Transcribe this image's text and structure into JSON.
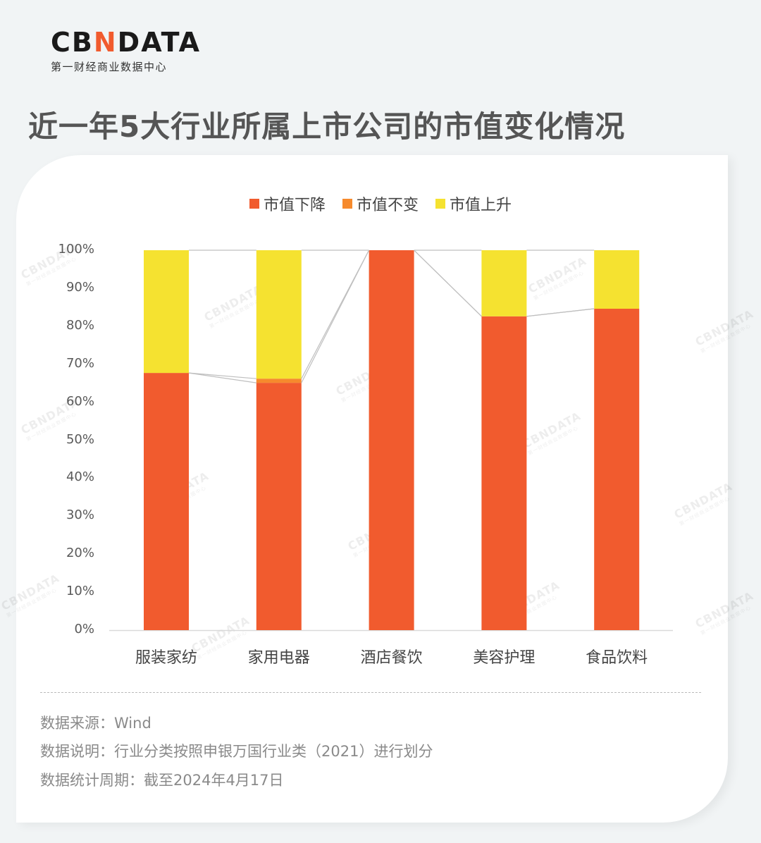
{
  "brand": {
    "logo_prefix": "CB",
    "logo_accent": "N",
    "logo_suffix": "DATA",
    "logo_subtitle": "第一财经商业数据中心"
  },
  "title": "近一年5大行业所属上市公司的市值变化情况",
  "colors": {
    "decrease": "#F15B2E",
    "unchanged": "#F68A2D",
    "increase": "#F5E230",
    "connector": "#BFBFBF",
    "axis": "#D9D9D9"
  },
  "legend": [
    {
      "label": "市值下降",
      "color": "#F15B2E"
    },
    {
      "label": "市值不变",
      "color": "#F68A2D"
    },
    {
      "label": "市值上升",
      "color": "#F5E230"
    }
  ],
  "chart_data": {
    "type": "bar",
    "stacked": true,
    "percent_stacked": true,
    "title": "近一年5大行业所属上市公司的市值变化情况",
    "xlabel": "",
    "ylabel": "",
    "ylim": [
      0,
      100
    ],
    "yticks": [
      "0%",
      "10%",
      "20%",
      "30%",
      "40%",
      "50%",
      "60%",
      "70%",
      "80%",
      "90%",
      "100%"
    ],
    "categories": [
      "服装家纺",
      "家用电器",
      "酒店餐饮",
      "美容护理",
      "食品饮料"
    ],
    "series": [
      {
        "name": "市值下降",
        "color": "#F15B2E",
        "values": [
          67.7,
          65.1,
          100.0,
          82.6,
          84.6
        ]
      },
      {
        "name": "市值不变",
        "color": "#F68A2D",
        "values": [
          0.0,
          1.1,
          0.0,
          0.0,
          0.0
        ]
      },
      {
        "name": "市值上升",
        "color": "#F5E230",
        "values": [
          32.3,
          33.8,
          0.0,
          17.4,
          15.4
        ]
      }
    ],
    "legend_position": "top",
    "grid": false,
    "series_lines": true
  },
  "notes": [
    "数据来源：Wind",
    "数据说明：行业分类按照申银万国行业类（2021）进行划分",
    "数据统计周期：截至2024年4月17日"
  ],
  "watermark": {
    "text": "CBNDATA",
    "sub": "第一财经商业数据中心"
  }
}
